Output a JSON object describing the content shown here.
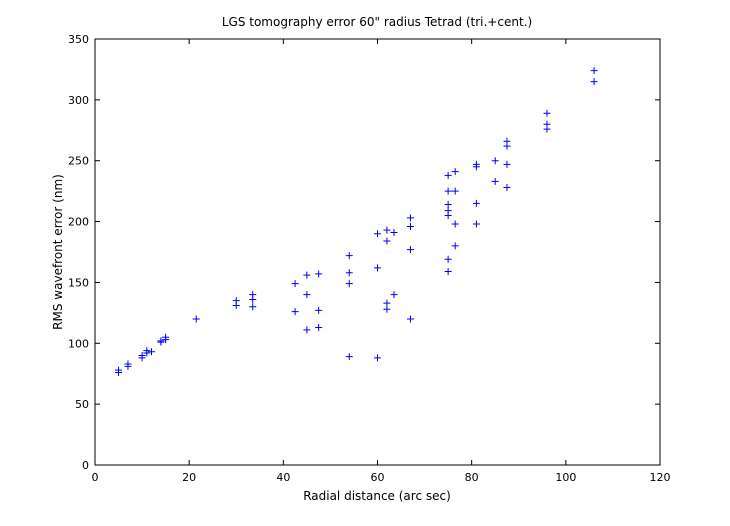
{
  "chart_data": {
    "type": "scatter",
    "title": "LGS tomography error 60\" radius Tetrad (tri.+cent.)",
    "xlabel": "Radial distance (arc sec)",
    "ylabel": "RMS wavefront error (nm)",
    "xlim": [
      0,
      120
    ],
    "ylim": [
      0,
      350
    ],
    "xticks": [
      0,
      20,
      40,
      60,
      80,
      100,
      120
    ],
    "yticks": [
      0,
      50,
      100,
      150,
      200,
      250,
      300,
      350
    ],
    "xtick_labels": [
      "0",
      "20",
      "40",
      "60",
      "80",
      "100",
      "120"
    ],
    "ytick_labels": [
      "0",
      "50",
      "100",
      "150",
      "200",
      "250",
      "300",
      "350"
    ],
    "grid": false,
    "marker": "+",
    "color": "#0000ff",
    "series": [
      {
        "points": [
          [
            5,
            76
          ],
          [
            5,
            78
          ],
          [
            7,
            81
          ],
          [
            7,
            83
          ],
          [
            10,
            88
          ],
          [
            10,
            90
          ],
          [
            11,
            92
          ],
          [
            11,
            94
          ],
          [
            12,
            93
          ],
          [
            14,
            101
          ],
          [
            14,
            102
          ],
          [
            15,
            103
          ],
          [
            15,
            105
          ],
          [
            21.5,
            120
          ],
          [
            30,
            131
          ],
          [
            30,
            135
          ],
          [
            33.5,
            130
          ],
          [
            33.5,
            136
          ],
          [
            33.5,
            140
          ],
          [
            42.5,
            126
          ],
          [
            42.5,
            149
          ],
          [
            45,
            111
          ],
          [
            45,
            140
          ],
          [
            45,
            156
          ],
          [
            47.5,
            113
          ],
          [
            47.5,
            127
          ],
          [
            47.5,
            157
          ],
          [
            54,
            89
          ],
          [
            54,
            149
          ],
          [
            54,
            158
          ],
          [
            54,
            172
          ],
          [
            60,
            88
          ],
          [
            60,
            162
          ],
          [
            60,
            190
          ],
          [
            62,
            128
          ],
          [
            62,
            133
          ],
          [
            62,
            184
          ],
          [
            62,
            193
          ],
          [
            63.5,
            140
          ],
          [
            63.5,
            191
          ],
          [
            67,
            120
          ],
          [
            67,
            177
          ],
          [
            67,
            196
          ],
          [
            67,
            203
          ],
          [
            75,
            159
          ],
          [
            75,
            169
          ],
          [
            75,
            205
          ],
          [
            75,
            209
          ],
          [
            75,
            214
          ],
          [
            75,
            225
          ],
          [
            75,
            238
          ],
          [
            76.5,
            180
          ],
          [
            76.5,
            198
          ],
          [
            76.5,
            225
          ],
          [
            76.5,
            241
          ],
          [
            81,
            198
          ],
          [
            81,
            215
          ],
          [
            81,
            245
          ],
          [
            81,
            247
          ],
          [
            85,
            233
          ],
          [
            85,
            250
          ],
          [
            87.5,
            228
          ],
          [
            87.5,
            247
          ],
          [
            87.5,
            262
          ],
          [
            87.5,
            266
          ],
          [
            96,
            276
          ],
          [
            96,
            280
          ],
          [
            96,
            289
          ],
          [
            106,
            315
          ],
          [
            106,
            324
          ]
        ]
      }
    ]
  }
}
